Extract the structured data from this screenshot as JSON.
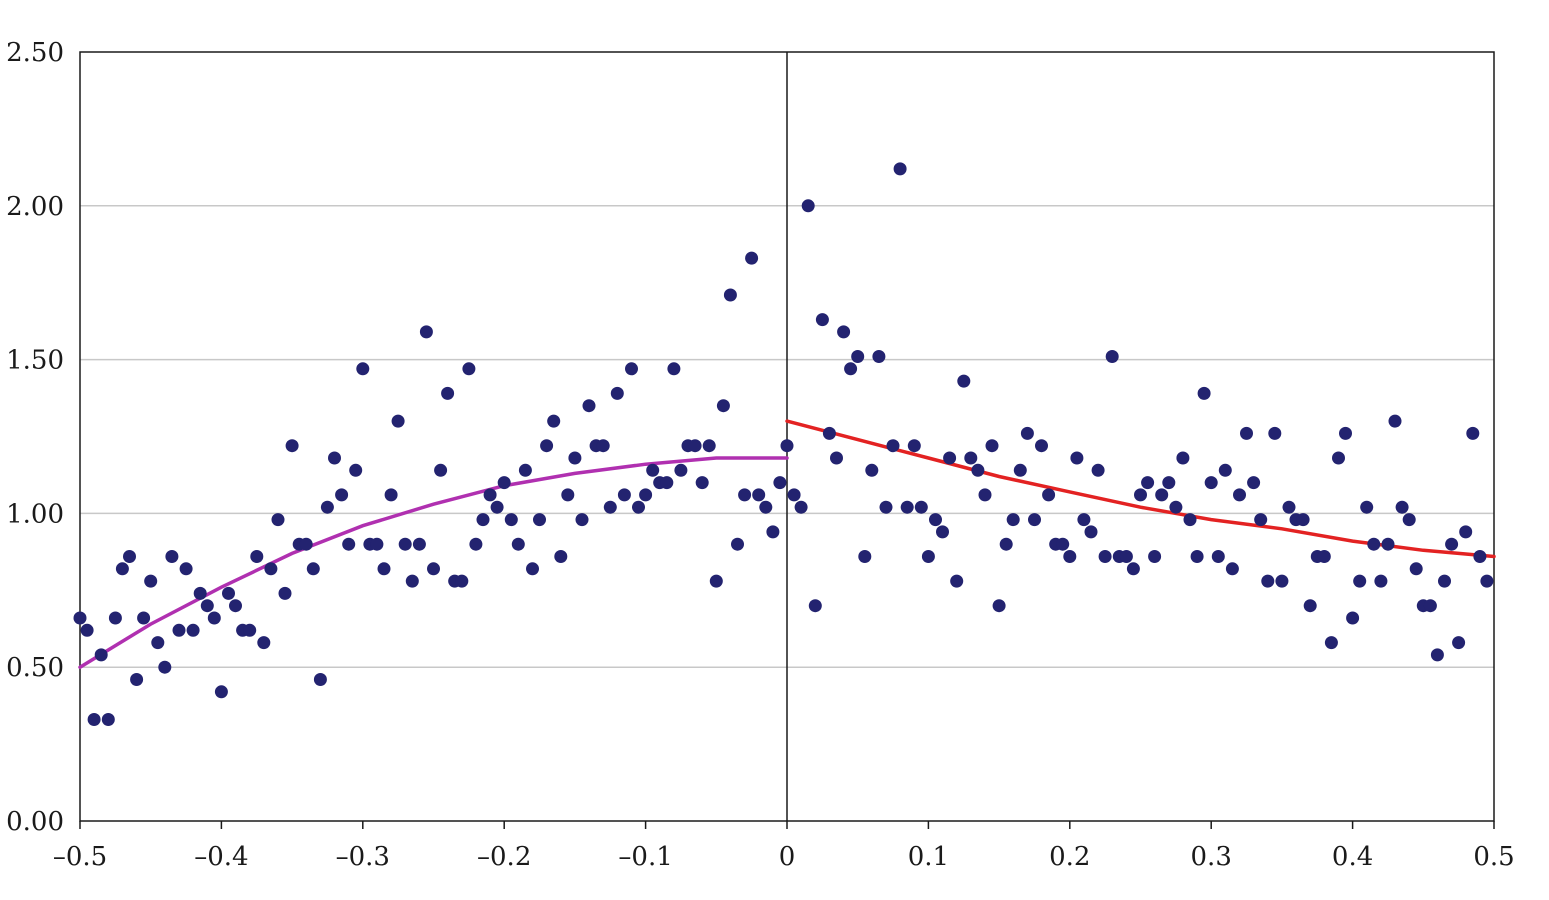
{
  "chart_data": {
    "type": "scatter",
    "title": "",
    "xlabel": "",
    "ylabel": "",
    "xlim": [
      -0.5,
      0.5
    ],
    "ylim": [
      0,
      2.5
    ],
    "grid": "horizontal",
    "legend": "none",
    "cutoff_x": 0,
    "x_ticks": [
      -0.5,
      -0.4,
      -0.3,
      -0.2,
      -0.1,
      0,
      0.1,
      0.2,
      0.3,
      0.4,
      0.5
    ],
    "x_tick_labels": [
      "–0.5",
      "–0.4",
      "–0.3",
      "–0.2",
      "–0.1",
      "0",
      "0.1",
      "0.2",
      "0.3",
      "0.4",
      "0.5"
    ],
    "y_ticks": [
      0,
      0.5,
      1,
      1.5,
      2,
      2.5
    ],
    "y_tick_labels": [
      "0.00",
      "0.50",
      "1.00",
      "1.50",
      "2.00",
      "2.50"
    ],
    "colors": {
      "points": "#232370",
      "fit_left": "#b030b0",
      "fit_right": "#e32222",
      "grid": "#c8c8c8",
      "axis": "#1a1a1a"
    },
    "series": [
      {
        "kind": "points",
        "x": [
          -0.5,
          -0.495,
          -0.49,
          -0.485,
          -0.48,
          -0.475,
          -0.47,
          -0.465,
          -0.46,
          -0.455,
          -0.45,
          -0.445,
          -0.44,
          -0.435,
          -0.43,
          -0.425,
          -0.42,
          -0.415,
          -0.41,
          -0.405,
          -0.4,
          -0.395,
          -0.39,
          -0.385,
          -0.38,
          -0.375,
          -0.37,
          -0.365,
          -0.36,
          -0.355,
          -0.35,
          -0.345,
          -0.34,
          -0.335,
          -0.33,
          -0.325,
          -0.32,
          -0.315,
          -0.31,
          -0.305,
          -0.3,
          -0.295,
          -0.29,
          -0.285,
          -0.28,
          -0.275,
          -0.27,
          -0.265,
          -0.26,
          -0.255,
          -0.25,
          -0.245,
          -0.24,
          -0.235,
          -0.23,
          -0.225,
          -0.22,
          -0.215,
          -0.21,
          -0.205,
          -0.2,
          -0.195,
          -0.19,
          -0.185,
          -0.18,
          -0.175,
          -0.17,
          -0.165,
          -0.16,
          -0.155,
          -0.15,
          -0.145,
          -0.14,
          -0.135,
          -0.13,
          -0.125,
          -0.12,
          -0.115,
          -0.11,
          -0.105,
          -0.1,
          -0.095,
          -0.09,
          -0.085,
          -0.08,
          -0.075,
          -0.07,
          -0.065,
          -0.06,
          -0.055,
          -0.05,
          -0.045,
          -0.04,
          -0.035,
          -0.03,
          -0.025,
          -0.02,
          -0.015,
          -0.01,
          -0.005,
          0.0,
          0.005,
          0.01,
          0.015,
          0.02,
          0.025,
          0.03,
          0.035,
          0.04,
          0.045,
          0.05,
          0.055,
          0.06,
          0.065,
          0.07,
          0.075,
          0.08,
          0.085,
          0.09,
          0.095,
          0.1,
          0.105,
          0.11,
          0.115,
          0.12,
          0.125,
          0.13,
          0.135,
          0.14,
          0.145,
          0.15,
          0.155,
          0.16,
          0.165,
          0.17,
          0.175,
          0.18,
          0.185,
          0.19,
          0.195,
          0.2,
          0.205,
          0.21,
          0.215,
          0.22,
          0.225,
          0.23,
          0.235,
          0.24,
          0.245,
          0.25,
          0.255,
          0.26,
          0.265,
          0.27,
          0.275,
          0.28,
          0.285,
          0.29,
          0.295,
          0.3,
          0.305,
          0.31,
          0.315,
          0.32,
          0.325,
          0.33,
          0.335,
          0.34,
          0.345,
          0.35,
          0.355,
          0.36,
          0.365,
          0.37,
          0.375,
          0.38,
          0.385,
          0.39,
          0.395,
          0.4,
          0.405,
          0.41,
          0.415,
          0.42,
          0.425,
          0.43,
          0.435,
          0.44,
          0.445,
          0.45,
          0.455,
          0.46,
          0.465,
          0.47,
          0.475,
          0.48,
          0.485,
          0.49,
          0.495
        ],
        "y": [
          0.66,
          0.62,
          0.33,
          0.54,
          0.33,
          0.66,
          0.82,
          0.86,
          0.46,
          0.66,
          0.78,
          0.58,
          0.5,
          0.86,
          0.62,
          0.82,
          0.62,
          0.74,
          0.7,
          0.66,
          0.42,
          0.74,
          0.7,
          0.62,
          0.62,
          0.86,
          0.58,
          0.82,
          0.98,
          0.74,
          1.22,
          0.9,
          0.9,
          0.82,
          0.46,
          1.02,
          1.18,
          1.06,
          0.9,
          1.14,
          1.47,
          0.9,
          0.9,
          0.82,
          1.06,
          1.3,
          0.9,
          0.78,
          0.9,
          1.59,
          0.82,
          1.14,
          1.39,
          0.78,
          0.78,
          1.47,
          0.9,
          0.98,
          1.06,
          1.02,
          1.1,
          0.98,
          0.9,
          1.14,
          0.82,
          0.98,
          1.22,
          1.3,
          0.86,
          1.06,
          1.18,
          0.98,
          1.35,
          1.22,
          1.22,
          1.02,
          1.39,
          1.06,
          1.47,
          1.02,
          1.06,
          1.14,
          1.1,
          1.1,
          1.47,
          1.14,
          1.22,
          1.22,
          1.1,
          1.22,
          0.78,
          1.35,
          1.71,
          0.9,
          1.06,
          1.83,
          1.06,
          1.02,
          0.94,
          1.1,
          1.22,
          1.06,
          1.02,
          2.0,
          0.7,
          1.63,
          1.26,
          1.18,
          1.59,
          1.47,
          1.51,
          0.86,
          1.14,
          1.51,
          1.02,
          1.22,
          2.12,
          1.02,
          1.22,
          1.02,
          0.86,
          0.98,
          0.94,
          1.18,
          0.78,
          1.43,
          1.18,
          1.14,
          1.06,
          1.22,
          0.7,
          0.9,
          0.98,
          1.14,
          1.26,
          0.98,
          1.22,
          1.06,
          0.9,
          0.9,
          0.86,
          1.18,
          0.98,
          0.94,
          1.14,
          0.86,
          1.51,
          0.86,
          0.86,
          0.82,
          1.06,
          1.1,
          0.86,
          1.06,
          1.1,
          1.02,
          1.18,
          0.98,
          0.86,
          1.39,
          1.1,
          0.86,
          1.14,
          0.82,
          1.06,
          1.26,
          1.1,
          0.98,
          0.78,
          1.26,
          0.78,
          1.02,
          0.98,
          0.98,
          0.7,
          0.86,
          0.86,
          0.58,
          1.18,
          1.26,
          0.66,
          0.78,
          1.02,
          0.9,
          0.78,
          0.9,
          1.3,
          1.02,
          0.98,
          0.82,
          0.7,
          0.7,
          0.54,
          0.78,
          0.9,
          0.58,
          0.94,
          1.26,
          0.86,
          0.78
        ]
      },
      {
        "kind": "line",
        "x": [
          -0.5,
          -0.45,
          -0.4,
          -0.35,
          -0.3,
          -0.25,
          -0.2,
          -0.15,
          -0.1,
          -0.05,
          -0.03,
          -0.01,
          0.0
        ],
        "y": [
          0.5,
          0.64,
          0.76,
          0.87,
          0.96,
          1.03,
          1.09,
          1.13,
          1.16,
          1.18,
          1.18,
          1.18,
          1.18
        ]
      },
      {
        "kind": "line",
        "x": [
          0.0,
          0.05,
          0.1,
          0.15,
          0.2,
          0.25,
          0.3,
          0.35,
          0.4,
          0.45,
          0.5
        ],
        "y": [
          1.3,
          1.24,
          1.18,
          1.12,
          1.07,
          1.02,
          0.98,
          0.95,
          0.91,
          0.88,
          0.86
        ]
      }
    ]
  }
}
